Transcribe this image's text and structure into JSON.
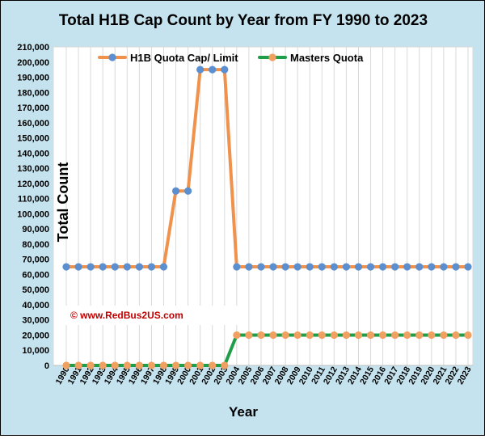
{
  "chart_data": {
    "type": "line",
    "title": "Total H1B Cap Count  by Year from FY 1990 to 2023",
    "xlabel": "Year",
    "ylabel": "Total Count",
    "watermark": "© www.RedBus2US.com",
    "ylim": [
      0,
      210000
    ],
    "yticks": [
      0,
      10000,
      20000,
      30000,
      40000,
      50000,
      60000,
      70000,
      80000,
      90000,
      100000,
      110000,
      120000,
      130000,
      140000,
      150000,
      160000,
      170000,
      180000,
      190000,
      200000,
      210000
    ],
    "ytick_labels": [
      "0",
      "10,000",
      "20,000",
      "30,000",
      "40,000",
      "50,000",
      "60,000",
      "70,000",
      "80,000",
      "90,000",
      "100,000",
      "110,000",
      "120,000",
      "130,000",
      "140,000",
      "150,000",
      "160,000",
      "170,000",
      "180,000",
      "190,000",
      "200,000",
      "210,000"
    ],
    "categories": [
      "1990",
      "1991",
      "1992",
      "1993",
      "1994",
      "1995",
      "1996",
      "1997",
      "1998",
      "1999",
      "2000",
      "2001",
      "2002",
      "2003",
      "2004",
      "2005",
      "2006",
      "2007",
      "2008",
      "2009",
      "2010",
      "2011",
      "2012",
      "2013",
      "2014",
      "2015",
      "2016",
      "2017",
      "2018",
      "2019",
      "2020",
      "2021",
      "2022",
      "2023"
    ],
    "legend_position": "top",
    "grid": "vertical",
    "series": [
      {
        "name": "H1B Quota Cap/ Limit",
        "line_color": "#f0914c",
        "marker_color": "#5b8fd0",
        "values": [
          65000,
          65000,
          65000,
          65000,
          65000,
          65000,
          65000,
          65000,
          65000,
          115000,
          115000,
          195000,
          195000,
          195000,
          65000,
          65000,
          65000,
          65000,
          65000,
          65000,
          65000,
          65000,
          65000,
          65000,
          65000,
          65000,
          65000,
          65000,
          65000,
          65000,
          65000,
          65000,
          65000,
          65000
        ]
      },
      {
        "name": "Masters Quota",
        "line_color": "#1f9e4a",
        "marker_color": "#f0a060",
        "values": [
          0,
          0,
          0,
          0,
          0,
          0,
          0,
          0,
          0,
          0,
          0,
          0,
          0,
          0,
          20000,
          20000,
          20000,
          20000,
          20000,
          20000,
          20000,
          20000,
          20000,
          20000,
          20000,
          20000,
          20000,
          20000,
          20000,
          20000,
          20000,
          20000,
          20000,
          20000
        ]
      }
    ]
  }
}
